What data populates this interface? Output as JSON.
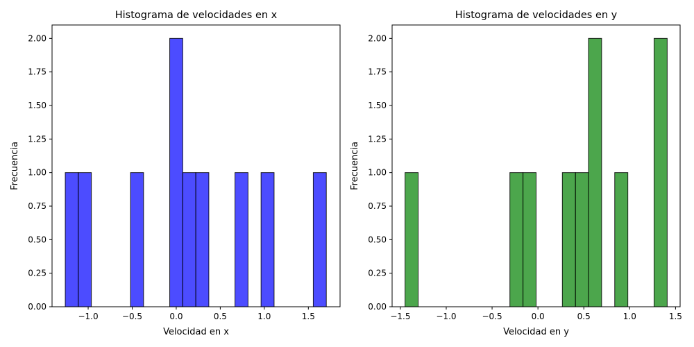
{
  "chart_data": [
    {
      "type": "bar",
      "title": "Histograma de velocidades en x",
      "xlabel": "Velocidad en x",
      "ylabel": "Frecuencia",
      "xlim": [
        -1.41,
        1.86
      ],
      "ylim": [
        0,
        2.1
      ],
      "xticks": [
        -1.0,
        -0.5,
        0.0,
        0.5,
        1.0,
        1.5
      ],
      "xtick_labels": [
        "−1.0",
        "−0.5",
        "0.0",
        "0.5",
        "1.0",
        "1.5"
      ],
      "yticks": [
        0,
        0.25,
        0.5,
        0.75,
        1.0,
        1.25,
        1.5,
        1.75,
        2.0
      ],
      "ytick_labels": [
        "0.00",
        "0.25",
        "0.50",
        "0.75",
        "1.00",
        "1.25",
        "1.50",
        "1.75",
        "2.00"
      ],
      "bin_width": 0.148,
      "color": "#0000ff",
      "bins": [
        {
          "x0": -1.26,
          "count": 1
        },
        {
          "x0": -1.112,
          "count": 1
        },
        {
          "x0": -0.519,
          "count": 1
        },
        {
          "x0": -0.074,
          "count": 2
        },
        {
          "x0": 0.074,
          "count": 1
        },
        {
          "x0": 0.222,
          "count": 1
        },
        {
          "x0": 0.667,
          "count": 1
        },
        {
          "x0": 0.963,
          "count": 1
        },
        {
          "x0": 1.556,
          "count": 1
        }
      ]
    },
    {
      "type": "bar",
      "title": "Histograma de velocidades en y",
      "xlabel": "Velocidad en y",
      "ylabel": "Frecuencia",
      "xlim": [
        -1.59,
        1.55
      ],
      "ylim": [
        0,
        2.1
      ],
      "xticks": [
        -1.5,
        -1.0,
        -0.5,
        0.0,
        0.5,
        1.0,
        1.5
      ],
      "xtick_labels": [
        "−1.5",
        "−1.0",
        "−0.5",
        "0.0",
        "0.5",
        "1.0",
        "1.5"
      ],
      "yticks": [
        0,
        0.25,
        0.5,
        0.75,
        1.0,
        1.25,
        1.5,
        1.75,
        2.0
      ],
      "ytick_labels": [
        "0.00",
        "0.25",
        "0.50",
        "0.75",
        "1.00",
        "1.25",
        "1.50",
        "1.75",
        "2.00"
      ],
      "bin_width": 0.143,
      "color": "#008000",
      "bins": [
        {
          "x0": -1.449,
          "count": 1
        },
        {
          "x0": -0.306,
          "count": 1
        },
        {
          "x0": -0.163,
          "count": 1
        },
        {
          "x0": 0.266,
          "count": 1
        },
        {
          "x0": 0.409,
          "count": 1
        },
        {
          "x0": 0.551,
          "count": 2
        },
        {
          "x0": 0.837,
          "count": 1
        },
        {
          "x0": 1.266,
          "count": 2
        }
      ]
    }
  ]
}
